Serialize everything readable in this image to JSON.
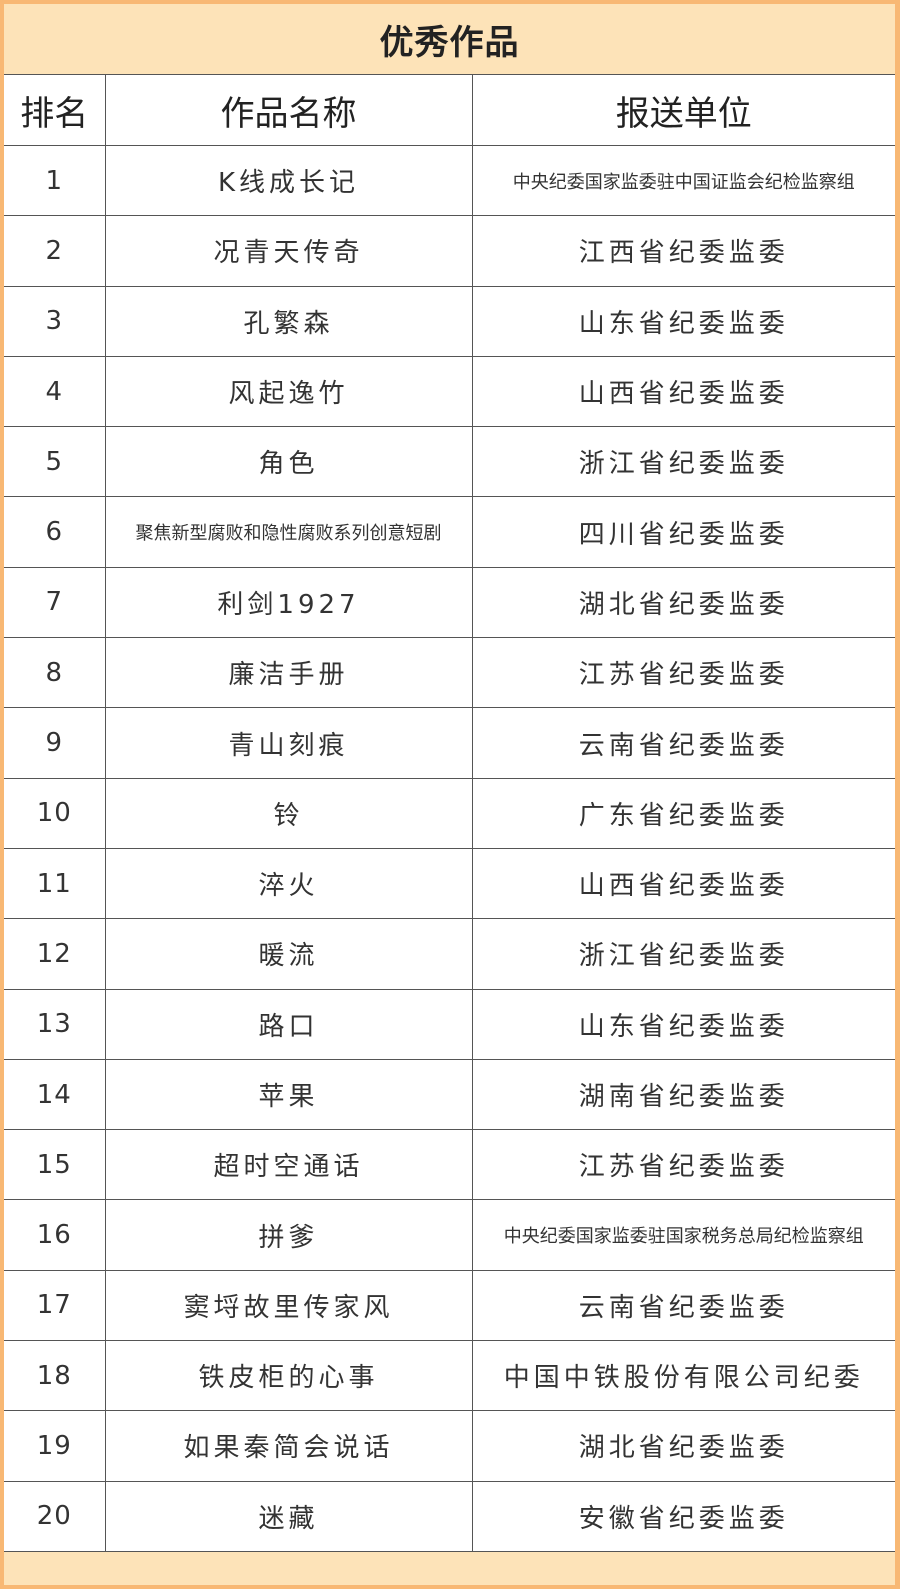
{
  "title": "优秀作品",
  "headers": {
    "rank": "排名",
    "work": "作品名称",
    "unit": "报送单位"
  },
  "rows": [
    {
      "rank": "1",
      "work": "K线成长记",
      "unit": "中央纪委国家监委驻中国证监会纪检监察组"
    },
    {
      "rank": "2",
      "work": "况青天传奇",
      "unit": "江西省纪委监委"
    },
    {
      "rank": "3",
      "work": "孔繁森",
      "unit": "山东省纪委监委"
    },
    {
      "rank": "4",
      "work": "风起逸竹",
      "unit": "山西省纪委监委"
    },
    {
      "rank": "5",
      "work": "角色",
      "unit": "浙江省纪委监委"
    },
    {
      "rank": "6",
      "work": "聚焦新型腐败和隐性腐败系列创意短剧",
      "unit": "四川省纪委监委"
    },
    {
      "rank": "7",
      "work": "利剑1927",
      "unit": "湖北省纪委监委"
    },
    {
      "rank": "8",
      "work": "廉洁手册",
      "unit": "江苏省纪委监委"
    },
    {
      "rank": "9",
      "work": "青山刻痕",
      "unit": "云南省纪委监委"
    },
    {
      "rank": "10",
      "work": "铃",
      "unit": "广东省纪委监委"
    },
    {
      "rank": "11",
      "work": "淬火",
      "unit": "山西省纪委监委"
    },
    {
      "rank": "12",
      "work": "暖流",
      "unit": "浙江省纪委监委"
    },
    {
      "rank": "13",
      "work": "路口",
      "unit": "山东省纪委监委"
    },
    {
      "rank": "14",
      "work": "苹果",
      "unit": "湖南省纪委监委"
    },
    {
      "rank": "15",
      "work": "超时空通话",
      "unit": "江苏省纪委监委"
    },
    {
      "rank": "16",
      "work": "拼爹",
      "unit": "中央纪委国家监委驻国家税务总局纪检监察组"
    },
    {
      "rank": "17",
      "work": "窦埒故里传家风",
      "unit": "云南省纪委监委"
    },
    {
      "rank": "18",
      "work": "铁皮柜的心事",
      "unit": "中国中铁股份有限公司纪委"
    },
    {
      "rank": "19",
      "work": "如果秦简会说话",
      "unit": "湖北省纪委监委"
    },
    {
      "rank": "20",
      "work": "迷藏",
      "unit": "安徽省纪委监委"
    }
  ],
  "colors": {
    "border": "#f8b874",
    "band": "#fde3b8",
    "grid": "#555555"
  }
}
